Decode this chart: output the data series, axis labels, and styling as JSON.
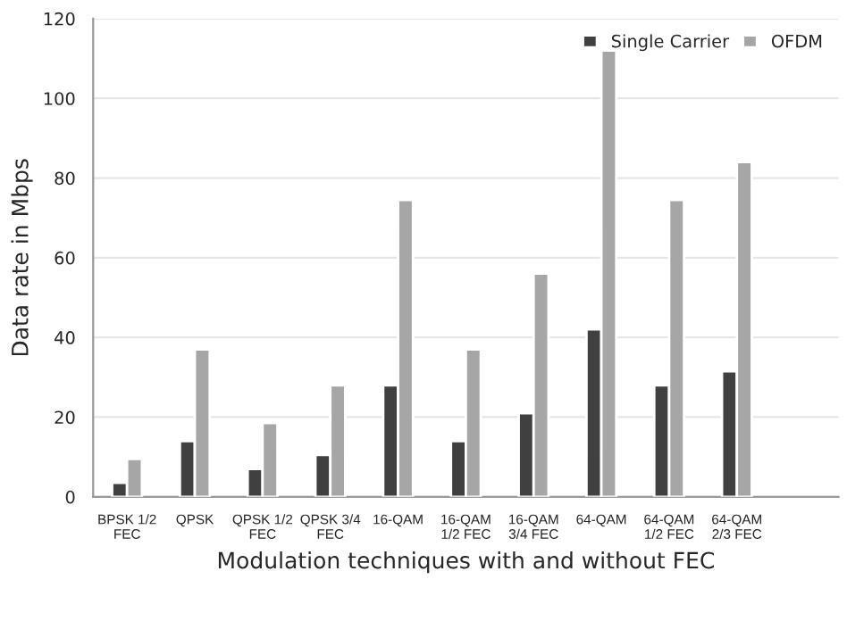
{
  "chart_data": {
    "type": "bar",
    "categories": [
      "BPSK 1/2\nFEC",
      "QPSK",
      "QPSK 1/2\nFEC",
      "QPSK 3/4\nFEC",
      "16-QAM",
      "16-QAM\n1/2 FEC",
      "16-QAM\n3/4 FEC",
      "64-QAM",
      "64-QAM\n1/2 FEC",
      "64-QAM\n2/3 FEC",
      null
    ],
    "series": [
      {
        "name": "Single Carrier",
        "color": "#404040",
        "values": [
          3.5,
          14,
          7,
          10.5,
          28,
          14,
          21,
          42,
          28,
          31.5,
          null
        ]
      },
      {
        "name": "OFDM",
        "color": "#a6a6a6",
        "values": [
          9.5,
          37,
          18.5,
          28,
          74.5,
          37,
          56,
          112,
          74.5,
          84,
          null
        ]
      }
    ],
    "xlabel": "Modulation techniques with and without FEC",
    "ylabel": "Data rate in Mbps",
    "ylim": [
      0,
      120
    ],
    "yticks": [
      0,
      20,
      40,
      60,
      80,
      100,
      120
    ],
    "grid": "y",
    "legend": "top right"
  }
}
